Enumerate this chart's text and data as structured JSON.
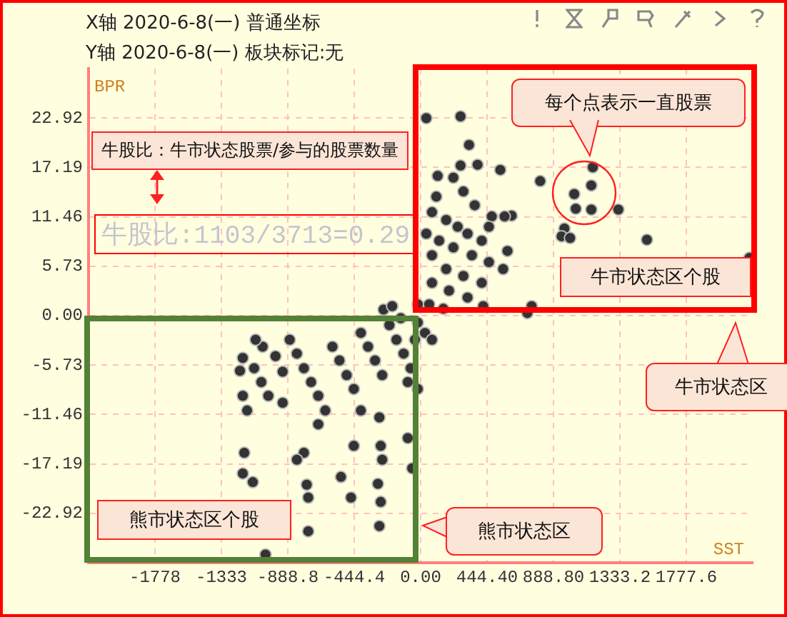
{
  "chart_data": {
    "type": "scatter",
    "title": "X轴  2020-6-8(一)  普通坐标",
    "subtitle": "Y轴  2020-6-8(一)  板块标记:无",
    "xlabel": "SST",
    "ylabel": "BPR",
    "annotations": [
      "牛股比：牛市状态股票/参与的股票数量",
      "牛股比:1103/3713=0.29",
      "每个点表示一直股票",
      "牛市状态区个股",
      "牛市状态区",
      "熊市状态区个股",
      "熊市状态区"
    ],
    "x": [
      38,
      267,
      324,
      381,
      114,
      105,
      267,
      533,
      800,
      1152,
      1142,
      1028,
      1038,
      1142,
      1323,
      962,
      943,
      1000,
      609,
      476,
      562,
      1514,
      2200,
      581,
      743,
      714,
      76,
      171,
      248,
      314,
      409,
      124,
      219,
      343,
      457,
      76,
      171,
      286,
      409,
      76,
      190,
      314,
      57,
      152,
      419,
      38,
      362,
      286,
      457,
      552,
      219,
      -1190,
      -1057,
      -1209,
      -971,
      -923,
      -1190,
      -1180,
      -1190,
      -1123,
      -762,
      -752,
      -466,
      -533,
      -267,
      -276,
      -286,
      -86,
      -57,
      -257,
      -267,
      -1038,
      -752,
      -1114,
      -1066,
      -1019,
      -1161,
      -876,
      -828,
      -781,
      -733,
      -685,
      -638,
      -590,
      -543,
      -495,
      -447,
      -400,
      -352,
      -305,
      -257,
      -209,
      -162,
      -114,
      -67,
      -19,
      -38,
      -133,
      -86,
      -19,
      -685,
      -781,
      -828,
      -923,
      -400,
      -447,
      -276,
      -1104,
      -248,
      -190,
      29,
      76,
      -19
    ],
    "values": [
      22.9,
      23.1,
      19.8,
      17.5,
      16.2,
      13.8,
      17.4,
      16.9,
      15.6,
      17.2,
      15.1,
      14.1,
      12.4,
      12.3,
      12.3,
      10.1,
      9.2,
      9.0,
      11.6,
      11.5,
      11.5,
      8.8,
      6.7,
      7.5,
      1.1,
      0.3,
      12.0,
      11.1,
      10.3,
      9.5,
      8.7,
      8.7,
      7.9,
      7.0,
      6.2,
      7.0,
      5.4,
      4.6,
      3.8,
      3.8,
      2.9,
      2.1,
      1.3,
      0.8,
      1.1,
      9.5,
      12.8,
      14.4,
      10.3,
      5.4,
      16.0,
      -4.9,
      -3.6,
      -6.4,
      -4.7,
      -6.5,
      -9.3,
      -15.9,
      -18.3,
      -19.3,
      -19.6,
      -21.1,
      -21.1,
      -18.7,
      -21.6,
      -24.4,
      -19.5,
      -14.2,
      -17.7,
      -16.7,
      -15.1,
      -27.7,
      -25.0,
      -6.1,
      -7.7,
      -9.3,
      -11.0,
      -2.8,
      -4.4,
      -6.1,
      -7.7,
      -9.3,
      -11.0,
      -3.6,
      -5.2,
      -6.9,
      -8.5,
      -2.0,
      -3.6,
      -5.2,
      -6.9,
      -1.1,
      -2.8,
      -4.4,
      -6.1,
      -0.8,
      -2.8,
      -0.3,
      -7.7,
      -8.5,
      -12.6,
      -15.9,
      -16.7,
      -10.1,
      -11.0,
      -15.1,
      -11.8,
      -2.8,
      0.7,
      1.1,
      -2.0,
      -2.8,
      1.3
    ],
    "color": "#333333",
    "marker": "circle",
    "grid": true,
    "legend": false,
    "xlim": [
      -2222,
      2222
    ],
    "ylim": [
      -28.65,
      28.65
    ],
    "xticks": [
      {
        "value": -1777.6,
        "label": "-1778"
      },
      {
        "value": -1333.2,
        "label": "-1333"
      },
      -888.8,
      -444.4,
      {
        "value": 0,
        "label": "0.00"
      },
      {
        "value": 444.4,
        "label": "444.40"
      },
      {
        "value": 888.8,
        "label": "888.80"
      },
      1333.2,
      1777.6
    ],
    "yticks": [
      22.92,
      17.19,
      11.46,
      5.73,
      {
        "value": 0,
        "label": "0.00"
      },
      -5.73,
      -11.46,
      -17.19,
      -22.92
    ]
  }
}
